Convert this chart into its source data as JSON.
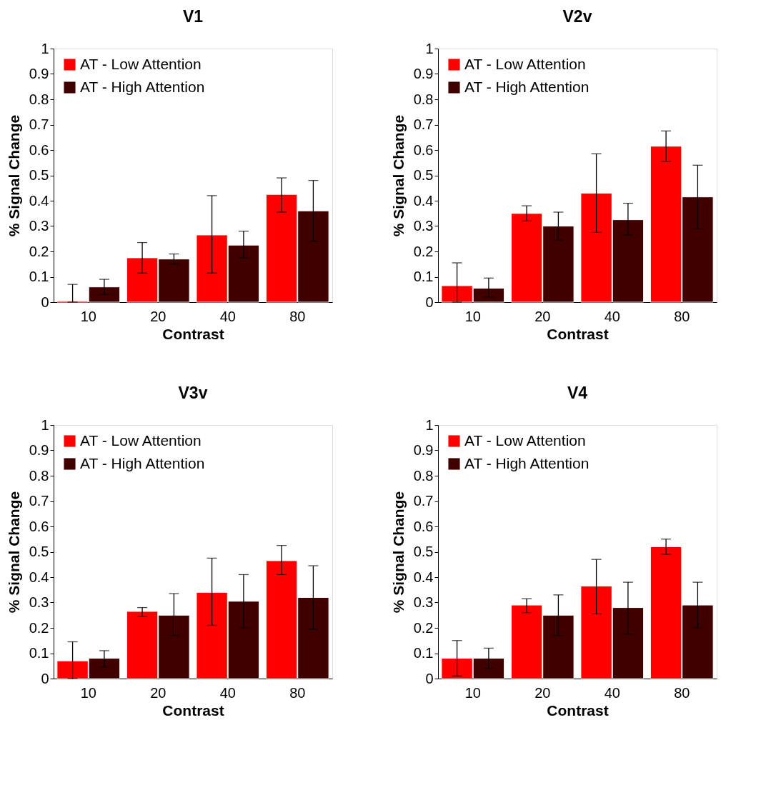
{
  "chart_data": [
    {
      "type": "bar",
      "title": "V1",
      "xlabel": "Contrast",
      "ylabel": "% Signal Change",
      "categories": [
        "10",
        "20",
        "40",
        "80"
      ],
      "ylim": [
        0,
        1
      ],
      "yticks": [
        0,
        0.1,
        0.2,
        0.3,
        0.4,
        0.5,
        0.6,
        0.7,
        0.8,
        0.9,
        1
      ],
      "legend": "top left",
      "series": [
        {
          "name": "AT - Low Attention",
          "color": "#ff0000",
          "values": [
            0.005,
            0.175,
            0.265,
            0.425
          ],
          "errors": [
            [
              0,
              0.07
            ],
            [
              0.115,
              0.235
            ],
            [
              0.115,
              0.42
            ],
            [
              0.355,
              0.49
            ]
          ]
        },
        {
          "name": "AT - High Attention",
          "color": "#400000",
          "values": [
            0.06,
            0.17,
            0.225,
            0.36
          ],
          "errors": [
            [
              0.03,
              0.09
            ],
            [
              0.15,
              0.19
            ],
            [
              0.175,
              0.28
            ],
            [
              0.24,
              0.48
            ]
          ]
        }
      ]
    },
    {
      "type": "bar",
      "title": "V2v",
      "xlabel": "Contrast",
      "ylabel": "% Signal Change",
      "categories": [
        "10",
        "20",
        "40",
        "80"
      ],
      "ylim": [
        0,
        1
      ],
      "yticks": [
        0,
        0.1,
        0.2,
        0.3,
        0.4,
        0.5,
        0.6,
        0.7,
        0.8,
        0.9,
        1
      ],
      "legend": "top left",
      "series": [
        {
          "name": "AT - Low Attention",
          "color": "#ff0000",
          "values": [
            0.065,
            0.35,
            0.43,
            0.615
          ],
          "errors": [
            [
              0,
              0.155
            ],
            [
              0.32,
              0.38
            ],
            [
              0.275,
              0.585
            ],
            [
              0.555,
              0.675
            ]
          ]
        },
        {
          "name": "AT - High Attention",
          "color": "#400000",
          "values": [
            0.055,
            0.3,
            0.325,
            0.415
          ],
          "errors": [
            [
              0.02,
              0.095
            ],
            [
              0.245,
              0.355
            ],
            [
              0.265,
              0.39
            ],
            [
              0.29,
              0.54
            ]
          ]
        }
      ]
    },
    {
      "type": "bar",
      "title": "V3v",
      "xlabel": "Contrast",
      "ylabel": "% Signal Change",
      "categories": [
        "10",
        "20",
        "40",
        "80"
      ],
      "ylim": [
        0,
        1
      ],
      "yticks": [
        0,
        0.1,
        0.2,
        0.3,
        0.4,
        0.5,
        0.6,
        0.7,
        0.8,
        0.9,
        1
      ],
      "legend": "top left",
      "series": [
        {
          "name": "AT - Low Attention",
          "color": "#ff0000",
          "values": [
            0.07,
            0.265,
            0.34,
            0.465
          ],
          "errors": [
            [
              0,
              0.145
            ],
            [
              0.245,
              0.28
            ],
            [
              0.21,
              0.475
            ],
            [
              0.41,
              0.525
            ]
          ]
        },
        {
          "name": "AT - High Attention",
          "color": "#400000",
          "values": [
            0.08,
            0.25,
            0.305,
            0.32
          ],
          "errors": [
            [
              0.045,
              0.11
            ],
            [
              0.17,
              0.335
            ],
            [
              0.2,
              0.41
            ],
            [
              0.195,
              0.445
            ]
          ]
        }
      ]
    },
    {
      "type": "bar",
      "title": "V4",
      "xlabel": "Contrast",
      "ylabel": "% Signal Change",
      "categories": [
        "10",
        "20",
        "40",
        "80"
      ],
      "ylim": [
        0,
        1
      ],
      "yticks": [
        0,
        0.1,
        0.2,
        0.3,
        0.4,
        0.5,
        0.6,
        0.7,
        0.8,
        0.9,
        1
      ],
      "legend": "top left",
      "series": [
        {
          "name": "AT - Low Attention",
          "color": "#ff0000",
          "values": [
            0.08,
            0.29,
            0.365,
            0.52
          ],
          "errors": [
            [
              0.01,
              0.15
            ],
            [
              0.26,
              0.315
            ],
            [
              0.255,
              0.47
            ],
            [
              0.49,
              0.55
            ]
          ]
        },
        {
          "name": "AT - High Attention",
          "color": "#400000",
          "values": [
            0.08,
            0.25,
            0.28,
            0.29
          ],
          "errors": [
            [
              0.04,
              0.12
            ],
            [
              0.17,
              0.33
            ],
            [
              0.175,
              0.38
            ],
            [
              0.2,
              0.38
            ]
          ]
        }
      ]
    }
  ]
}
